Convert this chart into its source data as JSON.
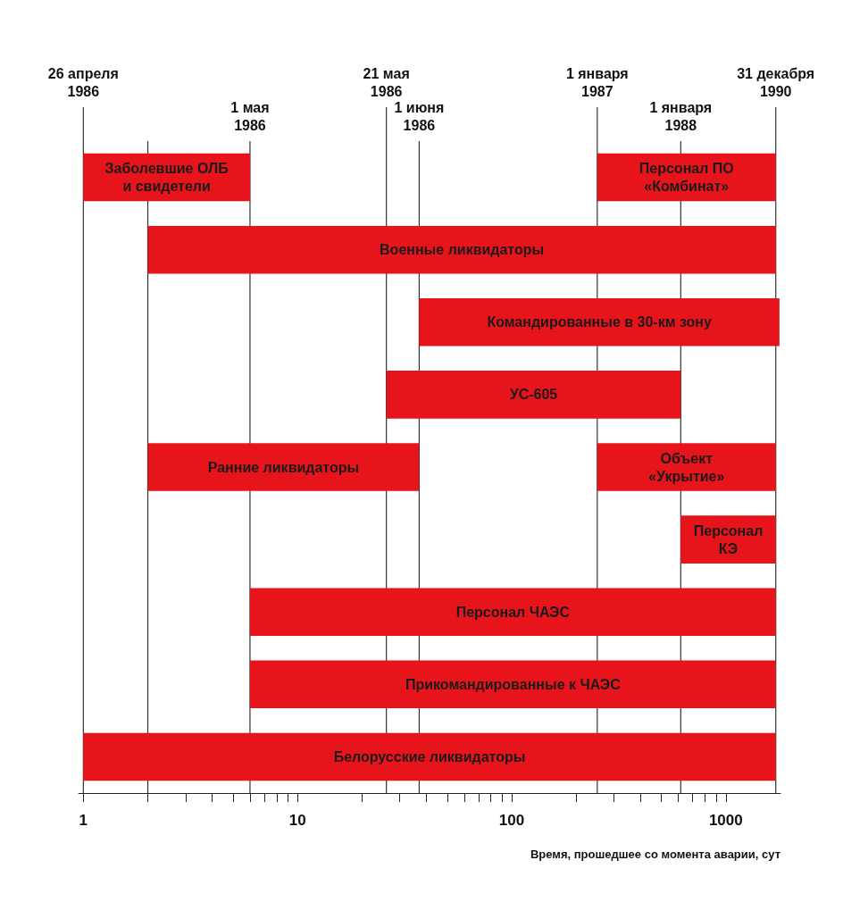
{
  "chart_data": {
    "type": "bar",
    "orientation": "horizontal",
    "log": "x",
    "xlabel": "Время, прошедшее со момента аварии, сут",
    "categories": [
      null,
      null,
      null,
      null,
      null,
      null,
      null,
      null,
      null
    ],
    "series": [
      {
        "name": "Заболевшие ОЛБ\nи свидетели",
        "color": "#e8141b",
        "values": [
          5,
          null,
          null,
          null,
          null,
          null,
          null,
          null,
          null
        ],
        "base": [
          1,
          null,
          null,
          null,
          null,
          null,
          null,
          null,
          null
        ]
      },
      {
        "name": "Персонал ПО\n«Комбинат»",
        "color": "#e8141b",
        "values": [
          1460,
          null,
          null,
          null,
          null,
          null,
          null,
          null,
          null
        ],
        "base": [
          251,
          null,
          null,
          null,
          null,
          null,
          null,
          null,
          null
        ]
      },
      {
        "name": "Военные ликвидаторы",
        "color": "#e8141b",
        "values": [
          null,
          1709,
          null,
          null,
          null,
          null,
          null,
          null,
          null
        ],
        "base": [
          null,
          2,
          null,
          null,
          null,
          null,
          null,
          null,
          null
        ]
      },
      {
        "name": "Командированные в 30-км зону",
        "color": "#e8141b",
        "values": [
          null,
          null,
          1743,
          null,
          null,
          null,
          null,
          null,
          null
        ],
        "base": [
          null,
          null,
          37,
          null,
          null,
          null,
          null,
          null,
          null
        ]
      },
      {
        "name": "УС-605",
        "color": "#e8141b",
        "values": [
          null,
          null,
          null,
          590,
          null,
          null,
          null,
          null,
          null
        ],
        "base": [
          null,
          null,
          null,
          26,
          null,
          null,
          null,
          null,
          null
        ]
      },
      {
        "name": "Ранние ликвидаторы",
        "color": "#e8141b",
        "values": [
          null,
          null,
          null,
          null,
          35,
          null,
          null,
          null,
          null
        ],
        "base": [
          null,
          null,
          null,
          null,
          2,
          null,
          null,
          null,
          null
        ]
      },
      {
        "name": "Объект\n«Укрытие»",
        "color": "#e8141b",
        "values": [
          null,
          null,
          null,
          null,
          1460,
          null,
          null,
          null,
          null
        ],
        "base": [
          null,
          null,
          null,
          null,
          251,
          null,
          null,
          null,
          null
        ]
      },
      {
        "name": "Персонал\nКЭ",
        "color": "#e8141b",
        "values": [
          null,
          null,
          null,
          null,
          null,
          1095,
          null,
          null,
          null
        ],
        "base": [
          null,
          null,
          null,
          null,
          null,
          616,
          null,
          null,
          null
        ]
      },
      {
        "name": "Персонал ЧАЭС",
        "color": "#e8141b",
        "values": [
          null,
          null,
          null,
          null,
          null,
          null,
          1705,
          null,
          null
        ],
        "base": [
          null,
          null,
          null,
          null,
          null,
          null,
          6,
          null,
          null
        ]
      },
      {
        "name": "Прикомандированные к ЧАЭС",
        "color": "#e8141b",
        "values": [
          null,
          null,
          null,
          null,
          null,
          null,
          null,
          1705,
          null
        ],
        "base": [
          null,
          null,
          null,
          null,
          null,
          null,
          null,
          6,
          null
        ]
      },
      {
        "name": "Белорусские ликвидаторы",
        "color": "#e8141b",
        "values": [
          null,
          null,
          null,
          null,
          null,
          null,
          null,
          null,
          1710
        ],
        "base": [
          null,
          null,
          null,
          null,
          null,
          null,
          null,
          null,
          1
        ]
      }
    ],
    "xlim": [
      0.95,
      1800
    ],
    "xticks": [
      1,
      {
        "value": 2,
        "label": null
      },
      {
        "value": 3,
        "label": null
      },
      {
        "value": 4,
        "label": null
      },
      {
        "value": 5,
        "label": null
      },
      {
        "value": 6,
        "label": null
      },
      {
        "value": 7,
        "label": null
      },
      {
        "value": 8,
        "label": null
      },
      {
        "value": 9,
        "label": null
      },
      10,
      {
        "value": 20,
        "label": null
      },
      {
        "value": 30,
        "label": null
      },
      {
        "value": 40,
        "label": null
      },
      {
        "value": 50,
        "label": null
      },
      {
        "value": 60,
        "label": null
      },
      {
        "value": 70,
        "label": null
      },
      {
        "value": 80,
        "label": null
      },
      {
        "value": 90,
        "label": null
      },
      100,
      {
        "value": 200,
        "label": null
      },
      {
        "value": 300,
        "label": null
      },
      {
        "value": 400,
        "label": null
      },
      {
        "value": 500,
        "label": null
      },
      {
        "value": 600,
        "label": null
      },
      {
        "value": 700,
        "label": null
      },
      {
        "value": 800,
        "label": null
      },
      {
        "value": 900,
        "label": null
      },
      1000
    ],
    "ref_lines": [
      {
        "axis": "x",
        "value": 1,
        "label": "26 апреля\n1986",
        "color": "#333333"
      },
      {
        "axis": "x",
        "value": 2,
        "label": null,
        "color": "#333333"
      },
      {
        "axis": "x",
        "value": 6,
        "label": "1 мая\n1986",
        "color": "#333333"
      },
      {
        "axis": "x",
        "value": 26,
        "label": "21 мая\n1986",
        "color": "#333333"
      },
      {
        "axis": "x",
        "value": 37,
        "label": "1 июня\n1986",
        "color": "#333333"
      },
      {
        "axis": "x",
        "value": 251,
        "label": "1 января\n1987",
        "color": "#333333"
      },
      {
        "axis": "x",
        "value": 616,
        "label": "1 января\n1988",
        "color": "#333333"
      },
      {
        "axis": "x",
        "value": 1711,
        "label": "31 декабря\n1990",
        "color": "#333333"
      }
    ],
    "grid": false,
    "legend": false
  }
}
